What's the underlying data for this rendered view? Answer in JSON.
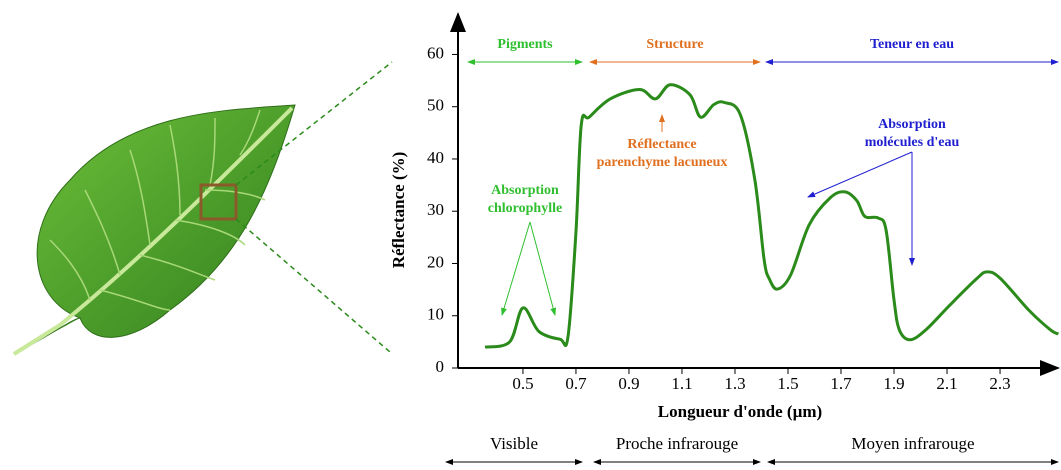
{
  "chart_data": {
    "type": "line",
    "xlabel": "Longueur d'onde (µm)",
    "ylabel": "Réflectance (%)",
    "xlim": [
      0.255,
      2.53
    ],
    "ylim": [
      0,
      62
    ],
    "xticks": [
      0.5,
      0.7,
      0.9,
      1.1,
      1.3,
      1.5,
      1.7,
      1.9,
      2.1,
      2.3
    ],
    "yticks": [
      0,
      10,
      20,
      30,
      40,
      50,
      60
    ],
    "series": [
      {
        "color": "#2a8a1a",
        "x": [
          0.357,
          0.45,
          0.5,
          0.56,
          0.64,
          0.67,
          0.7,
          0.72,
          0.75,
          0.83,
          0.94,
          1.0,
          1.055,
          1.13,
          1.17,
          1.22,
          1.26,
          1.32,
          1.375,
          1.41,
          1.43,
          1.46,
          1.51,
          1.58,
          1.66,
          1.715,
          1.76,
          1.79,
          1.84,
          1.87,
          1.9,
          1.92,
          1.96,
          2.02,
          2.11,
          2.21,
          2.25,
          2.3,
          2.41,
          2.49,
          2.52
        ],
        "values": [
          4,
          5,
          11.5,
          7,
          5.5,
          6,
          26,
          46.5,
          48,
          51.5,
          53.3,
          51.5,
          54.2,
          52.3,
          48,
          50.4,
          50.8,
          48.5,
          36,
          20.7,
          17,
          15.1,
          17.8,
          27.4,
          32.6,
          33.7,
          32,
          29,
          28.7,
          26.4,
          13,
          7.3,
          5.4,
          7.3,
          12,
          17,
          18.4,
          17.2,
          11,
          7.3,
          6.5
        ]
      }
    ],
    "bands": [
      "Pigments",
      "Structure",
      "Teneur en eau"
    ],
    "regions": [
      "Visible",
      "Proche infrarouge",
      "Moyen infrarouge"
    ],
    "annotations": [
      {
        "lines": [
          "Absorption",
          "chlorophylle"
        ],
        "color": "#2fbf2f"
      },
      {
        "lines": [
          "Réflectance",
          "parenchyme lacuneux"
        ],
        "color": "#e07020"
      },
      {
        "lines": [
          "Absorption",
          "molécules d'eau"
        ],
        "color": "#1f1fd0"
      }
    ]
  }
}
